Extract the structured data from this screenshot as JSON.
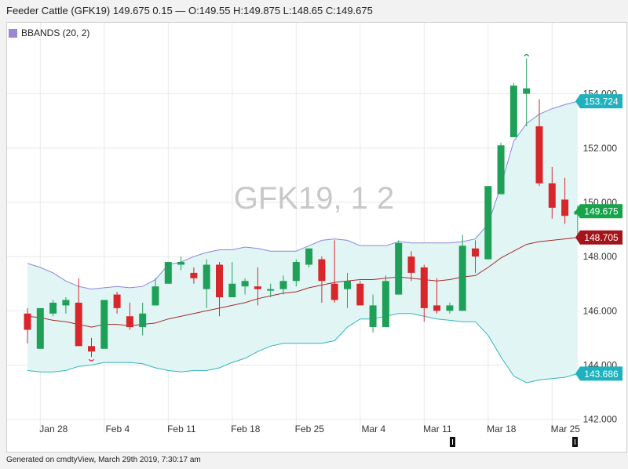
{
  "header": {
    "title": "Feeder Cattle (GFK19) 149.675 0.15 — O:149.55 H:149.875 L:148.65 C:149.675"
  },
  "legend": {
    "label": "BBANDS (20, 2)"
  },
  "watermark": "GFK19, 1 2",
  "footer": {
    "text": "Generated on cmdtyView, March 29th 2019, 7:30:17 am"
  },
  "chart_data": {
    "type": "candlestick",
    "ylim": [
      141.5,
      156.3
    ],
    "yticks": [
      142,
      144,
      146,
      148,
      150,
      152,
      154
    ],
    "ytick_labels": [
      "142.000",
      "144.000",
      "146.000",
      "148.000",
      "150.000",
      "152.000",
      "154.000"
    ],
    "xtick_labels": [
      {
        "label": "Jan 28",
        "index": 1
      },
      {
        "label": "Feb 4",
        "index": 6
      },
      {
        "label": "Feb 11",
        "index": 11
      },
      {
        "label": "Feb 18",
        "index": 16
      },
      {
        "label": "Feb 25",
        "index": 21
      },
      {
        "label": "Mar 4",
        "index": 26
      },
      {
        "label": "Mar 11",
        "index": 31
      },
      {
        "label": "Mar 18",
        "index": 36
      },
      {
        "label": "Mar 25",
        "index": 41
      }
    ],
    "candles": [
      {
        "o": 145.9,
        "h": 146.1,
        "l": 144.8,
        "c": 145.3
      },
      {
        "o": 144.6,
        "h": 146.1,
        "l": 144.6,
        "c": 146.1
      },
      {
        "o": 145.9,
        "h": 146.4,
        "l": 145.8,
        "c": 146.3
      },
      {
        "o": 146.2,
        "h": 146.5,
        "l": 145.9,
        "c": 146.4
      },
      {
        "o": 146.3,
        "h": 147.2,
        "l": 144.7,
        "c": 144.7
      },
      {
        "o": 144.7,
        "h": 145.0,
        "l": 144.3,
        "c": 144.5
      },
      {
        "o": 144.6,
        "h": 146.4,
        "l": 144.6,
        "c": 146.4
      },
      {
        "o": 146.6,
        "h": 146.7,
        "l": 145.9,
        "c": 146.1
      },
      {
        "o": 145.8,
        "h": 146.3,
        "l": 145.3,
        "c": 145.4
      },
      {
        "o": 145.4,
        "h": 146.3,
        "l": 145.1,
        "c": 145.9
      },
      {
        "o": 146.2,
        "h": 147.2,
        "l": 146.2,
        "c": 146.9
      },
      {
        "o": 147.0,
        "h": 147.8,
        "l": 147.0,
        "c": 147.8
      },
      {
        "o": 147.7,
        "h": 148.0,
        "l": 147.5,
        "c": 147.8
      },
      {
        "o": 147.4,
        "h": 147.6,
        "l": 147.0,
        "c": 147.2
      },
      {
        "o": 146.8,
        "h": 147.9,
        "l": 146.1,
        "c": 147.7
      },
      {
        "o": 147.7,
        "h": 147.8,
        "l": 145.8,
        "c": 146.5
      },
      {
        "o": 146.5,
        "h": 147.8,
        "l": 146.5,
        "c": 147.0
      },
      {
        "o": 146.9,
        "h": 147.2,
        "l": 146.6,
        "c": 147.1
      },
      {
        "o": 146.9,
        "h": 147.6,
        "l": 146.2,
        "c": 146.8
      },
      {
        "o": 146.8,
        "h": 147.0,
        "l": 146.5,
        "c": 146.8
      },
      {
        "o": 146.8,
        "h": 147.3,
        "l": 146.6,
        "c": 147.1
      },
      {
        "o": 147.1,
        "h": 147.9,
        "l": 146.9,
        "c": 147.8
      },
      {
        "o": 147.7,
        "h": 148.3,
        "l": 147.6,
        "c": 148.3
      },
      {
        "o": 147.9,
        "h": 148.0,
        "l": 146.3,
        "c": 147.1
      },
      {
        "o": 147.0,
        "h": 148.6,
        "l": 146.3,
        "c": 146.4
      },
      {
        "o": 146.8,
        "h": 147.4,
        "l": 146.1,
        "c": 147.1
      },
      {
        "o": 147.0,
        "h": 147.1,
        "l": 146.2,
        "c": 146.2
      },
      {
        "o": 145.4,
        "h": 146.6,
        "l": 145.2,
        "c": 146.2
      },
      {
        "o": 145.4,
        "h": 147.3,
        "l": 145.4,
        "c": 147.1
      },
      {
        "o": 146.6,
        "h": 148.6,
        "l": 146.6,
        "c": 148.5
      },
      {
        "o": 148.0,
        "h": 148.2,
        "l": 147.1,
        "c": 147.4
      },
      {
        "o": 147.6,
        "h": 147.7,
        "l": 145.6,
        "c": 146.1
      },
      {
        "o": 146.2,
        "h": 147.2,
        "l": 145.9,
        "c": 146.0
      },
      {
        "o": 146.0,
        "h": 146.3,
        "l": 145.9,
        "c": 146.2
      },
      {
        "o": 146.0,
        "h": 148.8,
        "l": 146.0,
        "c": 148.4
      },
      {
        "o": 148.3,
        "h": 148.6,
        "l": 147.4,
        "c": 148.0
      },
      {
        "o": 147.9,
        "h": 150.6,
        "l": 147.9,
        "c": 150.6
      },
      {
        "o": 150.3,
        "h": 152.2,
        "l": 150.3,
        "c": 152.1
      },
      {
        "o": 152.4,
        "h": 154.4,
        "l": 152.4,
        "c": 154.3
      },
      {
        "o": 154.0,
        "h": 155.3,
        "l": 152.8,
        "c": 154.2
      },
      {
        "o": 152.8,
        "h": 153.8,
        "l": 150.6,
        "c": 150.7
      },
      {
        "o": 150.7,
        "h": 151.3,
        "l": 149.4,
        "c": 149.8
      },
      {
        "o": 150.1,
        "h": 150.9,
        "l": 149.2,
        "c": 149.5
      },
      {
        "o": 149.55,
        "h": 149.875,
        "l": 148.65,
        "c": 149.675
      }
    ],
    "bollinger": {
      "upper": [
        147.75,
        147.6,
        147.4,
        147.1,
        146.9,
        146.8,
        146.85,
        146.9,
        146.85,
        146.9,
        147.15,
        147.7,
        147.8,
        148.0,
        148.15,
        148.25,
        148.25,
        148.35,
        148.3,
        148.2,
        148.2,
        148.2,
        148.4,
        148.6,
        148.65,
        148.6,
        148.4,
        148.4,
        148.4,
        148.55,
        148.5,
        148.5,
        148.5,
        148.5,
        148.55,
        148.65,
        149.2,
        150.6,
        152.25,
        152.9,
        153.25,
        153.45,
        153.6,
        153.724
      ],
      "middle": [
        145.8,
        145.75,
        145.65,
        145.6,
        145.5,
        145.4,
        145.5,
        145.5,
        145.45,
        145.5,
        145.55,
        145.7,
        145.8,
        145.9,
        146.0,
        146.1,
        146.2,
        146.3,
        146.45,
        146.55,
        146.65,
        146.7,
        146.85,
        146.95,
        147.05,
        147.1,
        147.15,
        147.15,
        147.2,
        147.25,
        147.2,
        147.15,
        147.1,
        147.15,
        147.25,
        147.3,
        147.6,
        147.95,
        148.2,
        148.45,
        148.55,
        148.6,
        148.65,
        148.705
      ],
      "lower": [
        143.8,
        143.75,
        143.75,
        143.8,
        143.95,
        144.0,
        144.1,
        144.1,
        144.1,
        144.05,
        143.9,
        143.8,
        143.75,
        143.8,
        143.8,
        143.9,
        144.1,
        144.25,
        144.5,
        144.7,
        144.8,
        144.8,
        144.8,
        144.8,
        144.9,
        145.4,
        145.7,
        145.7,
        145.8,
        145.9,
        145.9,
        145.8,
        145.7,
        145.65,
        145.6,
        145.6,
        145.1,
        144.3,
        143.6,
        143.35,
        143.45,
        143.5,
        143.55,
        143.686
      ]
    },
    "price_tags": [
      {
        "label": "153.724",
        "value": 153.724,
        "color": "#1fb1bd"
      },
      {
        "label": "149.675",
        "value": 149.675,
        "color": "#17a34a"
      },
      {
        "label": "148.705",
        "value": 148.705,
        "color": "#a3151a"
      },
      {
        "label": "143.686",
        "value": 143.686,
        "color": "#1fb1bd"
      }
    ],
    "markers": [
      {
        "type": "high",
        "index": 39
      },
      {
        "type": "low",
        "index": 5
      }
    ],
    "colors": {
      "up": "#1fa058",
      "down": "#d9262b",
      "band_fill": "#e2f5f5",
      "upper_line": "#8888d6",
      "middle_line": "#a52a2a",
      "lower_line": "#30b5c2",
      "grid": "#e8e8e8"
    }
  }
}
